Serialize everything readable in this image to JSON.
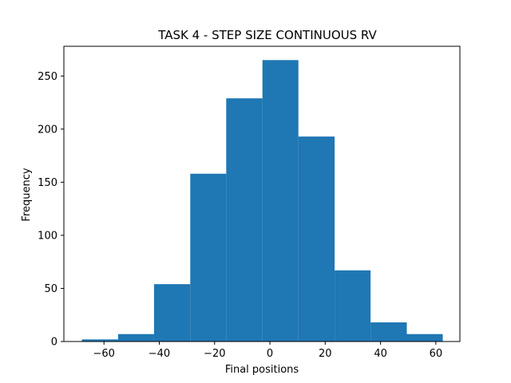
{
  "chart_data": {
    "type": "bar",
    "title": "TASK 4 - STEP SIZE CONTINUOUS RV",
    "xlabel": "Final positions",
    "ylabel": "Frequency",
    "xlim": [
      -74.5,
      68.7
    ],
    "ylim": [
      0,
      278
    ],
    "xticks": [
      -60,
      -40,
      -20,
      0,
      20,
      40,
      60
    ],
    "xtick_labels": [
      "−60",
      "−40",
      "−20",
      "0",
      "20",
      "40",
      "60"
    ],
    "yticks": [
      0,
      50,
      100,
      150,
      200,
      250
    ],
    "ytick_labels": [
      "0",
      "50",
      "100",
      "150",
      "200",
      "250"
    ],
    "bin_edges": [
      -68.0,
      -54.9,
      -41.9,
      -28.8,
      -15.8,
      -2.7,
      10.3,
      23.4,
      36.4,
      49.5,
      62.5
    ],
    "values": [
      2,
      7,
      54,
      158,
      229,
      265,
      193,
      67,
      18,
      7
    ],
    "bar_color": "#1f77b4",
    "grid": false
  }
}
